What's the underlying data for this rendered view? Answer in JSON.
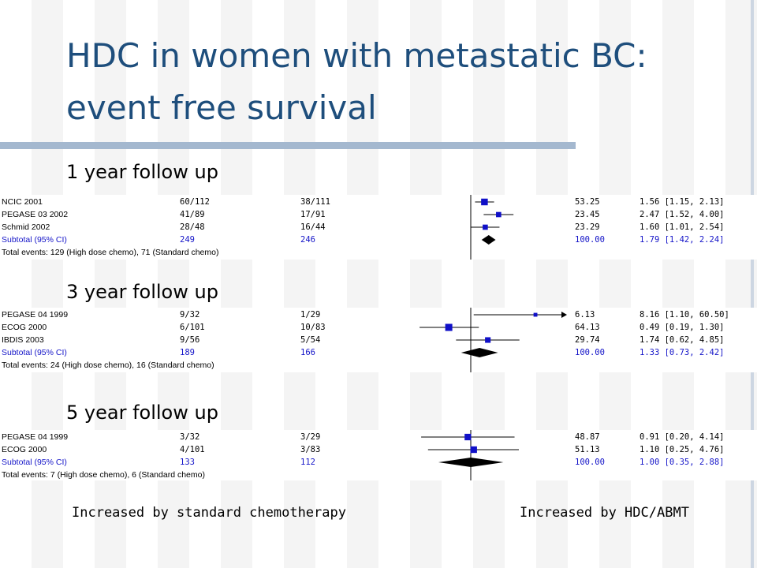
{
  "slide": {
    "title_line1": "HDC in women with metastatic BC:",
    "title_line2": "event free survival",
    "axis_left_label": "Increased by standard chemotherapy",
    "axis_right_label": "Increased by HDC/ABMT",
    "colors": {
      "title": "#1e4e7c",
      "rule": "#a4b8cf",
      "subtotal_text": "#1414c8",
      "study_marker": "#1010c8"
    }
  },
  "chart_data": [
    {
      "type": "forest",
      "section_label": "1 year follow up",
      "rows": [
        {
          "study": "NCIC 2001",
          "hdc": "60/112",
          "standard": "38/111",
          "weight": "53.25",
          "ci_text": "1.56 [1.15, 2.13]",
          "estimate": 1.56,
          "lower": 1.15,
          "upper": 2.13
        },
        {
          "study": "PEGASE 03 2002",
          "hdc": "41/89",
          "standard": "17/91",
          "weight": "23.45",
          "ci_text": "2.47 [1.52, 4.00]",
          "estimate": 2.47,
          "lower": 1.52,
          "upper": 4.0
        },
        {
          "study": "Schmid 2002",
          "hdc": "28/48",
          "standard": "16/44",
          "weight": "23.29",
          "ci_text": "1.60 [1.01, 2.54]",
          "estimate": 1.6,
          "lower": 1.01,
          "upper": 2.54
        }
      ],
      "subtotal": {
        "label": "Subtotal (95% CI)",
        "hdc": "249",
        "standard": "246",
        "weight": "100.00",
        "ci_text": "1.79 [1.42, 2.24]",
        "estimate": 1.79,
        "lower": 1.42,
        "upper": 2.24
      },
      "total_events": "Total events: 129 (High dose chemo), 71 (Standard chemo)"
    },
    {
      "type": "forest",
      "section_label": "3 year follow up",
      "rows": [
        {
          "study": "PEGASE 04 1999",
          "hdc": "9/32",
          "standard": "1/29",
          "weight": "6.13",
          "ci_text": "8.16 [1.10, 60.50]",
          "estimate": 8.16,
          "lower": 1.1,
          "upper": 60.5
        },
        {
          "study": "ECOG 2000",
          "hdc": "6/101",
          "standard": "10/83",
          "weight": "64.13",
          "ci_text": "0.49 [0.19, 1.30]",
          "estimate": 0.49,
          "lower": 0.19,
          "upper": 1.3
        },
        {
          "study": "IBDIS 2003",
          "hdc": "9/56",
          "standard": "5/54",
          "weight": "29.74",
          "ci_text": "1.74 [0.62, 4.85]",
          "estimate": 1.74,
          "lower": 0.62,
          "upper": 4.85
        }
      ],
      "subtotal": {
        "label": "Subtotal (95% CI)",
        "hdc": "189",
        "standard": "166",
        "weight": "100.00",
        "ci_text": "1.33 [0.73, 2.42]",
        "estimate": 1.33,
        "lower": 0.73,
        "upper": 2.42
      },
      "total_events": "Total events: 24 (High dose chemo), 16 (Standard chemo)"
    },
    {
      "type": "forest",
      "section_label": "5 year follow up",
      "rows": [
        {
          "study": "PEGASE 04 1999",
          "hdc": "3/32",
          "standard": "3/29",
          "weight": "48.87",
          "ci_text": "0.91 [0.20, 4.14]",
          "estimate": 0.91,
          "lower": 0.2,
          "upper": 4.14
        },
        {
          "study": "ECOG 2000",
          "hdc": "4/101",
          "standard": "3/83",
          "weight": "51.13",
          "ci_text": "1.10 [0.25, 4.76]",
          "estimate": 1.1,
          "lower": 0.25,
          "upper": 4.76
        }
      ],
      "subtotal": {
        "label": "Subtotal (95% CI)",
        "hdc": "133",
        "standard": "112",
        "weight": "100.00",
        "ci_text": "1.00 [0.35, 2.88]",
        "estimate": 1.0,
        "lower": 0.35,
        "upper": 2.88
      },
      "total_events": "Total events: 7 (High dose chemo), 6 (Standard chemo)"
    }
  ]
}
